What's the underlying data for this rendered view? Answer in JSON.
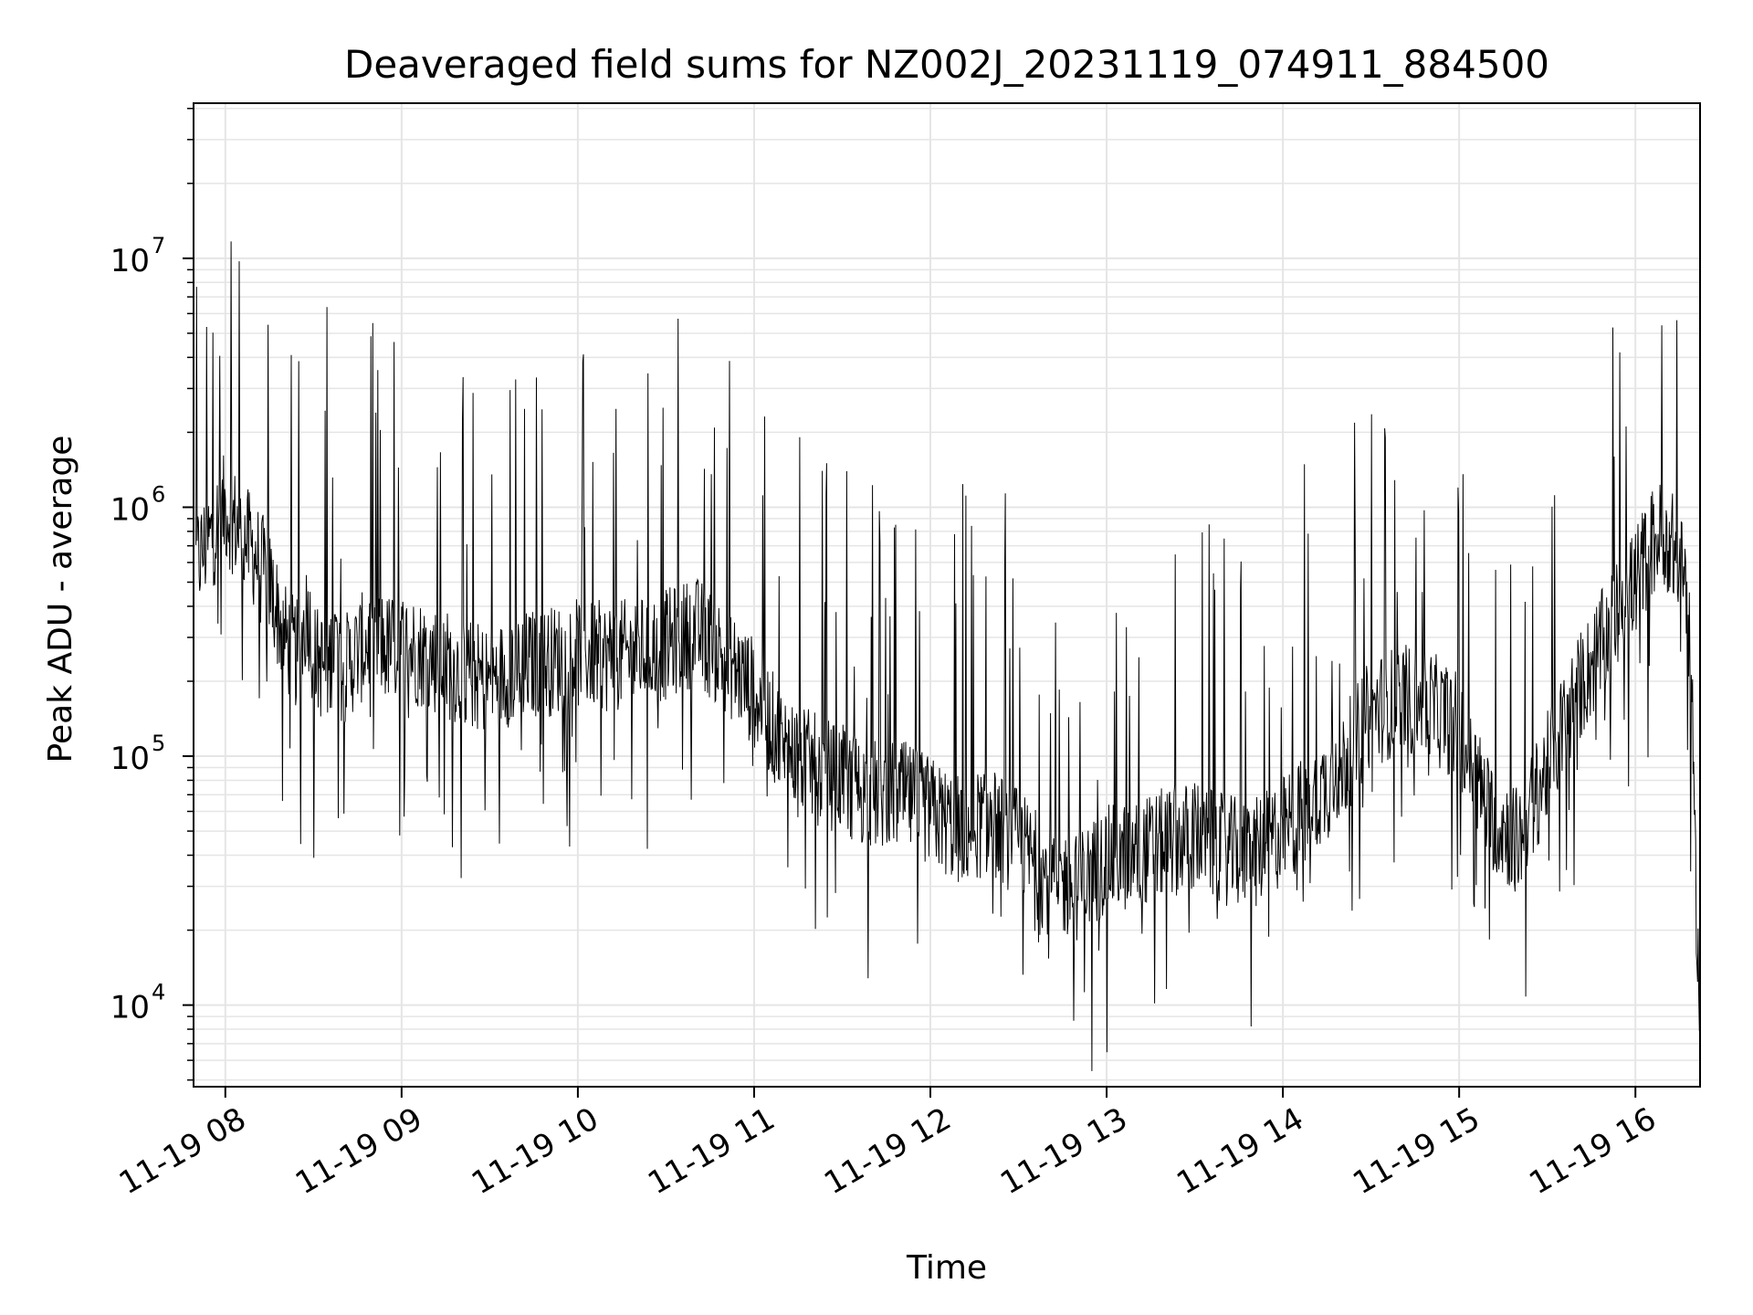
{
  "chart_data": {
    "type": "line",
    "title": "Deaveraged field sums for NZ002J_20231119_074911_884500",
    "xlabel": "Time",
    "ylabel": "Peak ADU - average",
    "y_scale": "log",
    "ylim": [
      4700,
      42000000
    ],
    "xlim": [
      "2023-11-19 07:49:11",
      "2023-11-19 16:22:00"
    ],
    "grid": true,
    "line_color": "#000000",
    "grid_color": "#e5e5e5",
    "x_ticks": [
      {
        "time": "2023-11-19 08:00",
        "label": "11-19 08"
      },
      {
        "time": "2023-11-19 09:00",
        "label": "11-19 09"
      },
      {
        "time": "2023-11-19 10:00",
        "label": "11-19 10"
      },
      {
        "time": "2023-11-19 11:00",
        "label": "11-19 11"
      },
      {
        "time": "2023-11-19 12:00",
        "label": "11-19 12"
      },
      {
        "time": "2023-11-19 13:00",
        "label": "11-19 13"
      },
      {
        "time": "2023-11-19 14:00",
        "label": "11-19 14"
      },
      {
        "time": "2023-11-19 15:00",
        "label": "11-19 15"
      },
      {
        "time": "2023-11-19 16:00",
        "label": "11-19 16"
      }
    ],
    "y_ticks": [
      {
        "value": 10000,
        "base": "10",
        "exp": "4"
      },
      {
        "value": 100000,
        "base": "10",
        "exp": "5"
      },
      {
        "value": 1000000,
        "base": "10",
        "exp": "6"
      },
      {
        "value": 10000000,
        "base": "10",
        "exp": "7"
      }
    ],
    "series": [
      {
        "x": [
          "2023-11-19 07:50",
          "2023-11-19 07:55",
          "2023-11-19 08:00",
          "2023-11-19 08:05",
          "2023-11-19 08:10",
          "2023-11-19 08:15",
          "2023-11-19 08:20",
          "2023-11-19 08:25",
          "2023-11-19 08:28",
          "2023-11-19 08:30",
          "2023-11-19 08:35",
          "2023-11-19 08:37",
          "2023-11-19 08:40",
          "2023-11-19 08:45",
          "2023-11-19 08:50",
          "2023-11-19 08:55",
          "2023-11-19 09:00",
          "2023-11-19 09:10",
          "2023-11-19 09:20",
          "2023-11-19 09:30",
          "2023-11-19 09:40",
          "2023-11-19 09:50",
          "2023-11-19 10:00",
          "2023-11-19 10:10",
          "2023-11-19 10:20",
          "2023-11-19 10:30",
          "2023-11-19 10:40",
          "2023-11-19 10:50",
          "2023-11-19 11:00",
          "2023-11-19 11:10",
          "2023-11-19 11:20",
          "2023-11-19 11:30",
          "2023-11-19 11:40",
          "2023-11-19 11:50",
          "2023-11-19 12:00",
          "2023-11-19 12:10",
          "2023-11-19 12:20",
          "2023-11-19 12:30",
          "2023-11-19 12:40",
          "2023-11-19 12:50",
          "2023-11-19 13:00",
          "2023-11-19 13:10",
          "2023-11-19 13:20",
          "2023-11-19 13:30",
          "2023-11-19 13:40",
          "2023-11-19 13:50",
          "2023-11-19 14:00",
          "2023-11-19 14:10",
          "2023-11-19 14:20",
          "2023-11-19 14:30",
          "2023-11-19 14:40",
          "2023-11-19 14:50",
          "2023-11-19 15:00",
          "2023-11-19 15:10",
          "2023-11-19 15:20",
          "2023-11-19 15:30",
          "2023-11-19 15:40",
          "2023-11-19 15:50",
          "2023-11-19 16:00",
          "2023-11-19 16:05",
          "2023-11-19 16:10",
          "2023-11-19 16:15",
          "2023-11-19 16:18",
          "2023-11-19 16:20",
          "2023-11-19 16:22"
        ],
        "values": [
          600000,
          750000,
          1000000,
          800000,
          650000,
          500000,
          300000,
          250000,
          400000,
          250000,
          220000,
          300000,
          220000,
          260000,
          300000,
          270000,
          280000,
          250000,
          220000,
          200000,
          230000,
          240000,
          260000,
          250000,
          260000,
          280000,
          320000,
          250000,
          180000,
          110000,
          90000,
          80000,
          70000,
          70000,
          60000,
          50000,
          55000,
          45000,
          32000,
          30000,
          38000,
          40000,
          45000,
          48000,
          42000,
          40000,
          50000,
          65000,
          90000,
          150000,
          170000,
          160000,
          130000,
          60000,
          45000,
          90000,
          180000,
          300000,
          500000,
          700000,
          800000,
          600000,
          400000,
          50000,
          9000
        ]
      }
    ]
  }
}
